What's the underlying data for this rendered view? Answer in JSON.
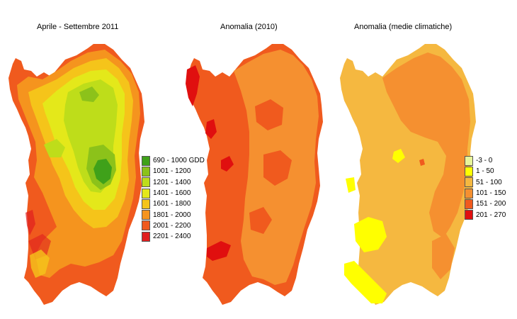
{
  "panels": [
    {
      "title": "Aprile - Settembre 2011",
      "legend": [
        {
          "label": "690 - 1000 GDD",
          "color": "#3fa11a"
        },
        {
          "label": "1001 - 1200",
          "color": "#8cc21a"
        },
        {
          "label": "1201 - 1400",
          "color": "#bedd1a"
        },
        {
          "label": "1401 - 1600",
          "color": "#e4e81a"
        },
        {
          "label": "1601 - 1800",
          "color": "#f5c41a"
        },
        {
          "label": "1801 - 2000",
          "color": "#f5941e"
        },
        {
          "label": "2001 - 2200",
          "color": "#f05a1e"
        },
        {
          "label": "2201 - 2400",
          "color": "#e01e1e"
        }
      ]
    },
    {
      "title": "Anomalia (2010)"
    },
    {
      "title": "Anomalia (medie climatiche)",
      "legend": [
        {
          "label": "-3 - 0",
          "color": "#e8f59a"
        },
        {
          "label": "1 - 50",
          "color": "#ffff00"
        },
        {
          "label": "51 - 100",
          "color": "#f5b840"
        },
        {
          "label": "101 - 150",
          "color": "#f59030"
        },
        {
          "label": "151 - 200",
          "color": "#f05a1e"
        },
        {
          "label": "201 - 270",
          "color": "#e00f0f"
        }
      ]
    }
  ]
}
